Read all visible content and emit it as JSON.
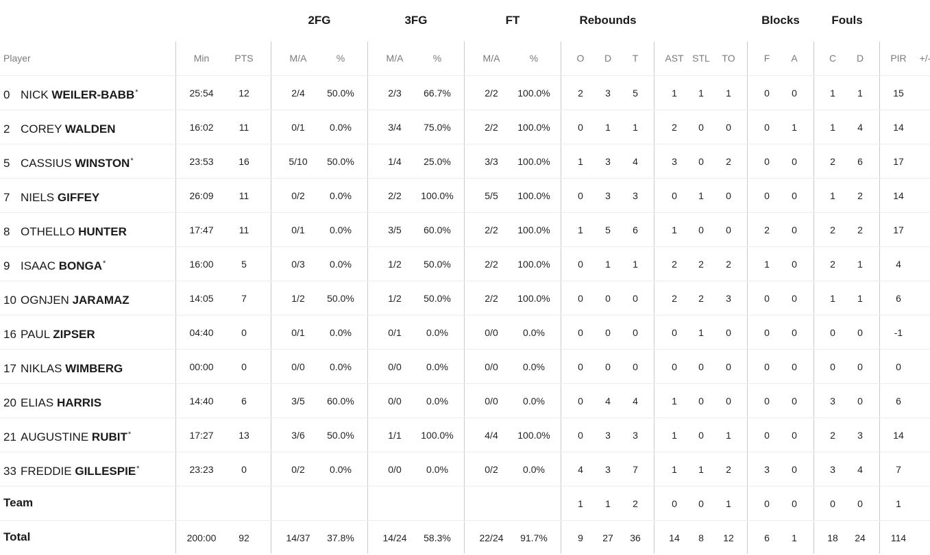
{
  "groups": [
    "2FG",
    "3FG",
    "FT",
    "Rebounds",
    "Blocks",
    "Fouls"
  ],
  "headers": [
    "Player",
    "Min",
    "PTS",
    "M/A",
    "%",
    "M/A",
    "%",
    "M/A",
    "%",
    "O",
    "D",
    "T",
    "AST",
    "STL",
    "TO",
    "F",
    "A",
    "C",
    "D",
    "PIR",
    "+/-"
  ],
  "players": [
    {
      "num": "0",
      "first": "NICK",
      "last": "WEILER-BABB",
      "star": "*",
      "stats": [
        "25:54",
        "12",
        "2/4",
        "50.0%",
        "2/3",
        "66.7%",
        "2/2",
        "100.0%",
        "2",
        "3",
        "5",
        "1",
        "1",
        "1",
        "0",
        "0",
        "1",
        "1",
        "15",
        ""
      ]
    },
    {
      "num": "2",
      "first": "COREY",
      "last": "WALDEN",
      "star": "",
      "stats": [
        "16:02",
        "11",
        "0/1",
        "0.0%",
        "3/4",
        "75.0%",
        "2/2",
        "100.0%",
        "0",
        "1",
        "1",
        "2",
        "0",
        "0",
        "0",
        "1",
        "1",
        "4",
        "14",
        ""
      ]
    },
    {
      "num": "5",
      "first": "CASSIUS",
      "last": "WINSTON",
      "star": "*",
      "stats": [
        "23:53",
        "16",
        "5/10",
        "50.0%",
        "1/4",
        "25.0%",
        "3/3",
        "100.0%",
        "1",
        "3",
        "4",
        "3",
        "0",
        "2",
        "0",
        "0",
        "2",
        "6",
        "17",
        ""
      ]
    },
    {
      "num": "7",
      "first": "NIELS",
      "last": "GIFFEY",
      "star": "",
      "stats": [
        "26:09",
        "11",
        "0/2",
        "0.0%",
        "2/2",
        "100.0%",
        "5/5",
        "100.0%",
        "0",
        "3",
        "3",
        "0",
        "1",
        "0",
        "0",
        "0",
        "1",
        "2",
        "14",
        ""
      ]
    },
    {
      "num": "8",
      "first": "OTHELLO",
      "last": "HUNTER",
      "star": "",
      "stats": [
        "17:47",
        "11",
        "0/1",
        "0.0%",
        "3/5",
        "60.0%",
        "2/2",
        "100.0%",
        "1",
        "5",
        "6",
        "1",
        "0",
        "0",
        "2",
        "0",
        "2",
        "2",
        "17",
        ""
      ]
    },
    {
      "num": "9",
      "first": "ISAAC",
      "last": "BONGA",
      "star": "*",
      "stats": [
        "16:00",
        "5",
        "0/3",
        "0.0%",
        "1/2",
        "50.0%",
        "2/2",
        "100.0%",
        "0",
        "1",
        "1",
        "2",
        "2",
        "2",
        "1",
        "0",
        "2",
        "1",
        "4",
        ""
      ]
    },
    {
      "num": "10",
      "first": "OGNJEN",
      "last": "JARAMAZ",
      "star": "",
      "stats": [
        "14:05",
        "7",
        "1/2",
        "50.0%",
        "1/2",
        "50.0%",
        "2/2",
        "100.0%",
        "0",
        "0",
        "0",
        "2",
        "2",
        "3",
        "0",
        "0",
        "1",
        "1",
        "6",
        ""
      ]
    },
    {
      "num": "16",
      "first": "PAUL",
      "last": "ZIPSER",
      "star": "",
      "stats": [
        "04:40",
        "0",
        "0/1",
        "0.0%",
        "0/1",
        "0.0%",
        "0/0",
        "0.0%",
        "0",
        "0",
        "0",
        "0",
        "1",
        "0",
        "0",
        "0",
        "0",
        "0",
        "-1",
        ""
      ]
    },
    {
      "num": "17",
      "first": "NIKLAS",
      "last": "WIMBERG",
      "star": "",
      "stats": [
        "00:00",
        "0",
        "0/0",
        "0.0%",
        "0/0",
        "0.0%",
        "0/0",
        "0.0%",
        "0",
        "0",
        "0",
        "0",
        "0",
        "0",
        "0",
        "0",
        "0",
        "0",
        "0",
        ""
      ]
    },
    {
      "num": "20",
      "first": "ELIAS",
      "last": "HARRIS",
      "star": "",
      "stats": [
        "14:40",
        "6",
        "3/5",
        "60.0%",
        "0/0",
        "0.0%",
        "0/0",
        "0.0%",
        "0",
        "4",
        "4",
        "1",
        "0",
        "0",
        "0",
        "0",
        "3",
        "0",
        "6",
        ""
      ]
    },
    {
      "num": "21",
      "first": "AUGUSTINE",
      "last": "RUBIT",
      "star": "*",
      "stats": [
        "17:27",
        "13",
        "3/6",
        "50.0%",
        "1/1",
        "100.0%",
        "4/4",
        "100.0%",
        "0",
        "3",
        "3",
        "1",
        "0",
        "1",
        "0",
        "0",
        "2",
        "3",
        "14",
        ""
      ]
    },
    {
      "num": "33",
      "first": "FREDDIE",
      "last": "GILLESPIE",
      "star": "*",
      "stats": [
        "23:23",
        "0",
        "0/2",
        "0.0%",
        "0/0",
        "0.0%",
        "0/2",
        "0.0%",
        "4",
        "3",
        "7",
        "1",
        "1",
        "2",
        "3",
        "0",
        "3",
        "4",
        "7",
        ""
      ]
    }
  ],
  "team": {
    "label": "Team",
    "stats": [
      "",
      "",
      "",
      "",
      "",
      "",
      "",
      "",
      "1",
      "1",
      "2",
      "0",
      "0",
      "1",
      "0",
      "0",
      "0",
      "0",
      "1",
      ""
    ]
  },
  "total": {
    "label": "Total",
    "stats": [
      "200:00",
      "92",
      "14/37",
      "37.8%",
      "14/24",
      "58.3%",
      "22/24",
      "91.7%",
      "9",
      "27",
      "36",
      "14",
      "8",
      "12",
      "6",
      "1",
      "18",
      "24",
      "114",
      ""
    ]
  }
}
